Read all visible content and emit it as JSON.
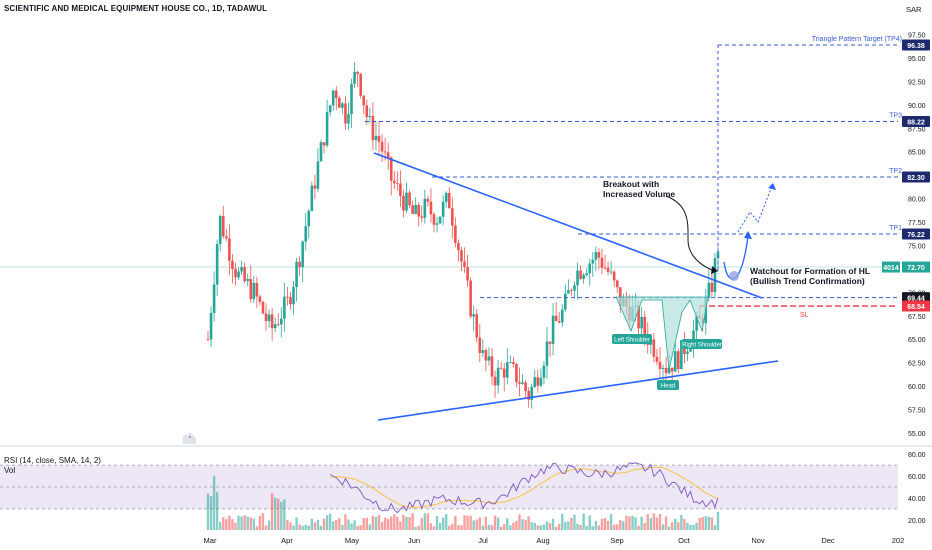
{
  "header": {
    "title": "SCIENTIFIC AND MEDICAL EQUIPMENT HOUSE CO., 1D, TADAWUL",
    "currency": "SAR"
  },
  "indicators": {
    "rsi_label": "RSI (14, close, SMA, 14, 2)",
    "vol_label": "Vol"
  },
  "colors": {
    "up": "#26a69a",
    "down": "#ef5350",
    "trendline": "#2962ff",
    "target_dash": "#3a5bd9",
    "stop_dash": "#f23645",
    "last_price_box": "#26a69a",
    "rsi_line": "#7e57c2",
    "rsi_ma": "#f5c542",
    "rsi_band": "#ede7f6"
  },
  "chart_data": {
    "type": "candlestick",
    "title": "SCIENTIFIC AND MEDICAL EQUIPMENT HOUSE CO., 1D, TADAWUL",
    "x_ticks": [
      "Mar",
      "Apr",
      "May",
      "Jun",
      "Jul",
      "Aug",
      "Sep",
      "Oct",
      "Nov",
      "Dec",
      "202"
    ],
    "y_ticks": [
      "97.50",
      "95.00",
      "92.50",
      "90.00",
      "87.50",
      "85.00",
      "82.50",
      "80.00",
      "77.50",
      "75.00",
      "72.50",
      "70.00",
      "67.50",
      "65.00",
      "62.50",
      "60.00",
      "57.50",
      "55.00"
    ],
    "ylim": [
      53.5,
      98.5
    ],
    "price_path": [
      [
        0,
        65
      ],
      [
        2,
        78
      ],
      [
        5,
        72
      ],
      [
        8,
        70
      ],
      [
        11,
        66
      ],
      [
        14,
        69
      ],
      [
        16,
        74
      ],
      [
        18,
        80
      ],
      [
        20,
        86
      ],
      [
        22,
        92
      ],
      [
        24,
        89
      ],
      [
        26,
        94
      ],
      [
        28,
        88
      ],
      [
        30,
        86
      ],
      [
        32,
        82
      ],
      [
        34,
        80
      ],
      [
        36,
        78
      ],
      [
        38,
        79
      ],
      [
        40,
        78
      ],
      [
        42,
        80
      ],
      [
        44,
        74
      ],
      [
        46,
        68
      ],
      [
        48,
        63
      ],
      [
        50,
        61
      ],
      [
        52,
        62
      ],
      [
        54,
        61
      ],
      [
        56,
        59
      ],
      [
        58,
        62
      ],
      [
        60,
        66
      ],
      [
        62,
        68
      ],
      [
        64,
        72
      ],
      [
        66,
        73
      ],
      [
        68,
        74
      ],
      [
        70,
        72
      ],
      [
        72,
        69
      ],
      [
        74,
        68
      ],
      [
        76,
        66
      ],
      [
        78,
        64
      ],
      [
        80,
        62
      ],
      [
        82,
        63
      ],
      [
        84,
        65
      ],
      [
        86,
        67
      ],
      [
        88,
        71
      ],
      [
        89,
        75
      ]
    ],
    "levels": [
      {
        "name": "Triangle Pattern Target (TP4)",
        "value": 96.38,
        "label": "96.38",
        "kind": "target"
      },
      {
        "name": "TP3",
        "value": 88.22,
        "label": "88.22",
        "kind": "target"
      },
      {
        "name": "TP2",
        "value": 82.3,
        "label": "82.30",
        "kind": "target"
      },
      {
        "name": "TP1",
        "value": 76.22,
        "label": "76.22",
        "kind": "target"
      },
      {
        "name": "",
        "value": 69.44,
        "label": "69.44",
        "kind": "neckline"
      },
      {
        "name": "SL",
        "value": 68.54,
        "label": "68.54",
        "kind": "stop"
      }
    ],
    "last_price": {
      "value": 72.7,
      "label": "72.70",
      "volume_label": "4014"
    },
    "annotations": [
      {
        "text": "Breakout with",
        "line2": "Increased Volume"
      },
      {
        "text": "Watchout for Formation of HL",
        "line2": "(Bullish Trend Confirmation)"
      }
    ],
    "pattern_labels": [
      "Left Shoulder",
      "Head",
      "Right Shoulder"
    ],
    "rsi": {
      "y_ticks": [
        "80.00",
        "60.00",
        "40.00",
        "20.00"
      ],
      "ylim": [
        18,
        82
      ],
      "upper_band": 70,
      "lower_band": 30,
      "mid": 50
    }
  }
}
